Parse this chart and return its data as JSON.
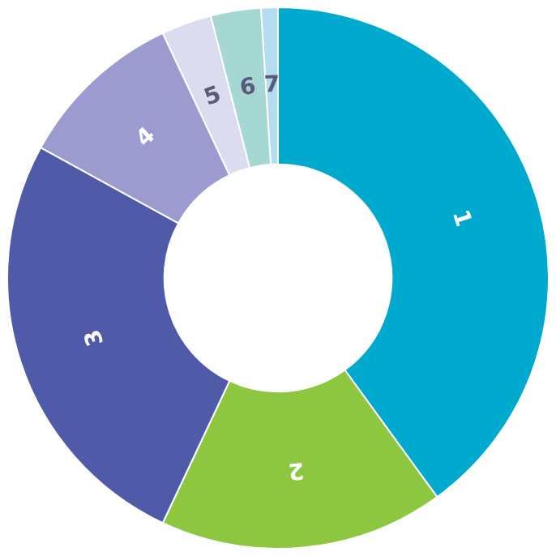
{
  "chart_data": {
    "type": "donut",
    "categories": [
      "1",
      "2",
      "3",
      "4",
      "5",
      "6",
      "7"
    ],
    "values": [
      40,
      17,
      26,
      10,
      3,
      3,
      1
    ],
    "colors": [
      "#00a9ce",
      "#8dc63f",
      "#4f5ba8",
      "#9b9bd0",
      "#dcdcf0",
      "#a5d8d3",
      "#b3dcf0"
    ],
    "legend": false
  }
}
